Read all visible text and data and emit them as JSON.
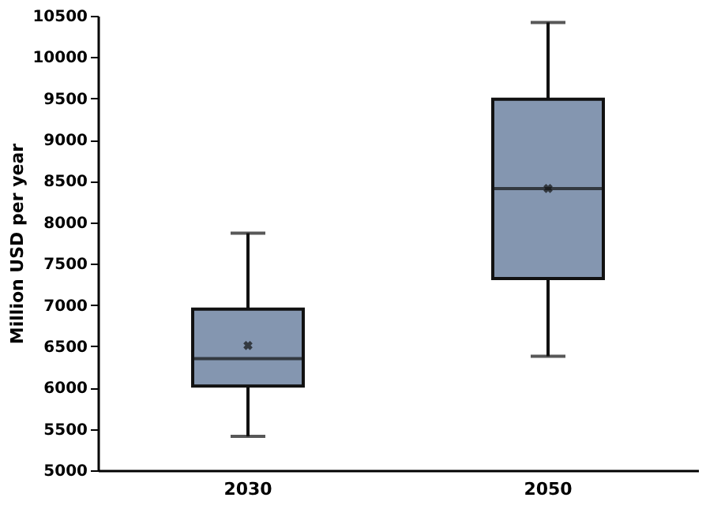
{
  "chart_data": {
    "type": "box",
    "ylabel": "Million USD per year",
    "categories": [
      "2030",
      "2050"
    ],
    "boxes": [
      {
        "low": 5410,
        "q1": 6020,
        "median": 6350,
        "q3": 6950,
        "high": 7870,
        "mean": 6510
      },
      {
        "low": 6380,
        "q1": 7320,
        "median": 8410,
        "q3": 9490,
        "high": 10420,
        "mean": 8410
      }
    ],
    "color": "#8496b0",
    "ylim": [
      5000,
      10500
    ],
    "yticks": [
      5000,
      5500,
      6000,
      6500,
      7000,
      7500,
      8000,
      8500,
      9000,
      9500,
      10000,
      10500
    ],
    "grid": false
  }
}
